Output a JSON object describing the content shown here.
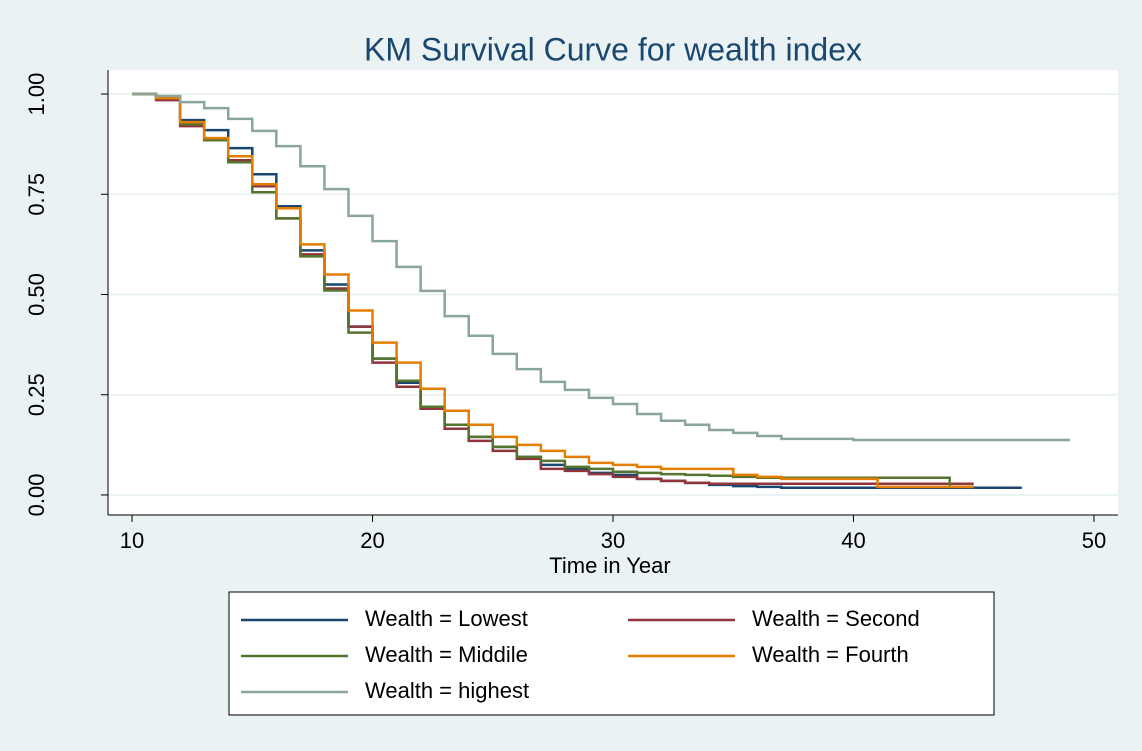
{
  "chart_data": {
    "type": "step",
    "title": "KM Survival Curve for wealth index",
    "x_label": "Time in Year",
    "xlim": [
      9,
      51
    ],
    "ylim": [
      -0.05,
      1.06
    ],
    "xticks": [
      10,
      20,
      30,
      40,
      50
    ],
    "yticks": [
      {
        "value": 0,
        "label": "0.00"
      },
      {
        "value": 0.25,
        "label": "0.25"
      },
      {
        "value": 0.5,
        "label": "0.50"
      },
      {
        "value": 0.75,
        "label": "0.75"
      },
      {
        "value": 1,
        "label": "1.00"
      }
    ],
    "grid": true,
    "legend_position": "bottom",
    "series": [
      {
        "name": "Wealth = Lowest",
        "color": "#1a476f",
        "x": [
          10,
          11,
          12,
          13,
          14,
          15,
          16,
          17,
          18,
          19,
          20,
          21,
          22,
          23,
          24,
          25,
          26,
          27,
          28,
          29,
          30,
          31,
          32,
          33,
          34,
          35,
          36,
          37,
          47
        ],
        "values": [
          1,
          0.99,
          0.935,
          0.91,
          0.865,
          0.8,
          0.72,
          0.61,
          0.525,
          0.42,
          0.34,
          0.28,
          0.22,
          0.175,
          0.145,
          0.12,
          0.095,
          0.075,
          0.065,
          0.055,
          0.05,
          0.04,
          0.035,
          0.03,
          0.025,
          0.022,
          0.02,
          0.018,
          0.018
        ]
      },
      {
        "name": "Wealth = Second",
        "color": "#90353b",
        "x": [
          10,
          11,
          12,
          13,
          14,
          15,
          16,
          17,
          18,
          19,
          20,
          21,
          22,
          23,
          24,
          25,
          26,
          27,
          28,
          29,
          30,
          31,
          32,
          33,
          34,
          45
        ],
        "values": [
          1,
          0.985,
          0.92,
          0.885,
          0.835,
          0.77,
          0.69,
          0.6,
          0.515,
          0.42,
          0.33,
          0.27,
          0.215,
          0.165,
          0.135,
          0.11,
          0.09,
          0.065,
          0.06,
          0.052,
          0.045,
          0.04,
          0.035,
          0.03,
          0.028,
          0.028
        ]
      },
      {
        "name": "Wealth = Middile",
        "color": "#55752f",
        "x": [
          10,
          11,
          12,
          13,
          14,
          15,
          16,
          17,
          18,
          19,
          20,
          21,
          22,
          23,
          24,
          25,
          26,
          27,
          28,
          29,
          30,
          31,
          32,
          33,
          34,
          35,
          36,
          44,
          45
        ],
        "values": [
          1,
          0.99,
          0.925,
          0.885,
          0.83,
          0.755,
          0.69,
          0.595,
          0.51,
          0.405,
          0.34,
          0.285,
          0.22,
          0.175,
          0.145,
          0.12,
          0.095,
          0.085,
          0.07,
          0.065,
          0.058,
          0.055,
          0.052,
          0.05,
          0.048,
          0.045,
          0.043,
          0.02,
          0.02
        ]
      },
      {
        "name": "Wealth = Fourth",
        "color": "#e37e00",
        "x": [
          10,
          11,
          12,
          13,
          14,
          15,
          16,
          17,
          18,
          19,
          20,
          21,
          22,
          23,
          24,
          25,
          26,
          27,
          28,
          29,
          30,
          31,
          32,
          35,
          36,
          37,
          41,
          45
        ],
        "values": [
          1,
          0.99,
          0.93,
          0.89,
          0.845,
          0.775,
          0.715,
          0.625,
          0.55,
          0.46,
          0.38,
          0.33,
          0.265,
          0.21,
          0.175,
          0.145,
          0.125,
          0.11,
          0.095,
          0.08,
          0.075,
          0.07,
          0.065,
          0.05,
          0.045,
          0.04,
          0.02,
          0.02
        ]
      },
      {
        "name": "Wealth = highest",
        "color": "#8aa59b",
        "x": [
          10,
          11,
          12,
          13,
          14,
          15,
          16,
          17,
          18,
          19,
          20,
          21,
          22,
          23,
          24,
          25,
          26,
          27,
          28,
          29,
          30,
          31,
          32,
          33,
          34,
          35,
          36,
          37,
          40,
          49
        ],
        "values": [
          1,
          0.995,
          0.98,
          0.965,
          0.938,
          0.908,
          0.87,
          0.82,
          0.763,
          0.696,
          0.633,
          0.569,
          0.509,
          0.446,
          0.397,
          0.352,
          0.314,
          0.282,
          0.262,
          0.242,
          0.227,
          0.202,
          0.185,
          0.175,
          0.162,
          0.155,
          0.147,
          0.14,
          0.137,
          0.137
        ]
      }
    ]
  }
}
